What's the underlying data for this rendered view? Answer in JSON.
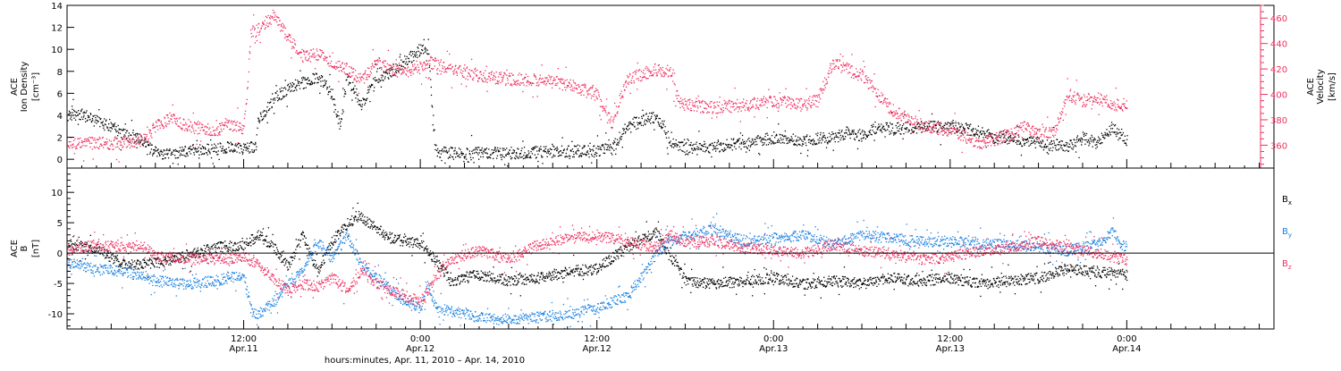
{
  "figure": {
    "xlabel": "hours:minutes, Apr. 11, 2010 – Apr. 14, 2010",
    "x_ticks": [
      {
        "time": "12:00",
        "date": "Apr.11",
        "hours": 12
      },
      {
        "time": "0:00",
        "date": "Apr.12",
        "hours": 24
      },
      {
        "time": "12:00",
        "date": "Apr.12",
        "hours": 36
      },
      {
        "time": "0:00",
        "date": "Apr.13",
        "hours": 48
      },
      {
        "time": "12:00",
        "date": "Apr.13",
        "hours": 60
      },
      {
        "time": "0:00",
        "date": "Apr.14",
        "hours": 72
      }
    ]
  },
  "chart_data": [
    {
      "type": "scatter",
      "panel": "plasma",
      "xlim": [
        0,
        82
      ],
      "x_unit": "hours since Apr.11 00:00",
      "left_axis": {
        "label_lines": [
          "ACE",
          "Ion Density",
          "[cm⁻³]"
        ],
        "ylim": [
          -0.8,
          14
        ],
        "ticks": [
          0,
          2,
          4,
          6,
          8,
          10,
          12,
          14
        ],
        "color": "#000000"
      },
      "right_axis": {
        "label_lines": [
          "ACE",
          "Velocity",
          "[km/s]"
        ],
        "ylim": [
          342,
          470
        ],
        "ticks": [
          360,
          380,
          400,
          420,
          440,
          460
        ],
        "color": "#ee3060"
      },
      "series": [
        {
          "axis": "left",
          "color": "#000000",
          "x": [
            0,
            1,
            2,
            3,
            4,
            5,
            5.5,
            6,
            7,
            8,
            9,
            10,
            11,
            12,
            12.8,
            13,
            13.5,
            14,
            15,
            16,
            17,
            18,
            18.5,
            19,
            20,
            21,
            22,
            23,
            24,
            24.5,
            25,
            26,
            28,
            30,
            32,
            34,
            36,
            37,
            37.5,
            38,
            39,
            40,
            40.5,
            41,
            42,
            44,
            46,
            48,
            50,
            52,
            53,
            54,
            55,
            56,
            58,
            60,
            61,
            62,
            63,
            64,
            66,
            68,
            69,
            70,
            71,
            72
          ],
          "y": [
            4.2,
            4.1,
            3.5,
            3.0,
            2.2,
            1.8,
            1.2,
            0.6,
            0.6,
            0.8,
            0.9,
            1.0,
            1.2,
            1.0,
            1.2,
            3.5,
            4.5,
            5.5,
            6.5,
            7.0,
            7.5,
            6.0,
            3.0,
            7.5,
            5.0,
            7.5,
            8.0,
            9.0,
            10.0,
            10.0,
            0.8,
            0.6,
            0.6,
            0.6,
            0.7,
            0.8,
            0.8,
            1.0,
            2.0,
            3.0,
            3.5,
            4.0,
            3.0,
            1.5,
            1.0,
            1.2,
            1.5,
            2.0,
            1.8,
            2.0,
            2.5,
            2.2,
            3.0,
            2.8,
            3.0,
            3.0,
            2.8,
            2.5,
            2.0,
            2.0,
            1.5,
            1.2,
            2.0,
            1.5,
            3.0,
            1.8
          ]
        },
        {
          "axis": "right",
          "color": "#ee3060",
          "x": [
            0,
            2,
            4,
            5,
            5.5,
            6,
            7,
            8,
            10,
            11,
            12,
            12.5,
            13,
            14,
            15,
            16,
            17,
            18,
            19,
            20,
            21,
            22,
            23,
            24,
            24.5,
            25,
            26,
            28,
            30,
            32,
            34,
            36,
            37,
            38,
            39,
            40,
            41,
            41.5,
            42,
            44,
            46,
            48,
            50,
            51,
            52,
            53,
            54,
            56,
            58,
            60,
            62,
            63,
            64,
            65,
            66,
            67,
            68,
            69,
            70,
            71,
            72
          ],
          "y": [
            362,
            362,
            362,
            364,
            368,
            375,
            382,
            376,
            372,
            376,
            374,
            450,
            452,
            462,
            445,
            430,
            432,
            425,
            420,
            412,
            425,
            420,
            418,
            422,
            425,
            425,
            420,
            415,
            412,
            412,
            408,
            400,
            378,
            412,
            416,
            420,
            418,
            395,
            392,
            390,
            392,
            395,
            392,
            396,
            425,
            420,
            415,
            388,
            376,
            372,
            362,
            365,
            368,
            375,
            370,
            370,
            400,
            395,
            398,
            392,
            392
          ]
        }
      ]
    },
    {
      "type": "scatter",
      "panel": "magnetic field",
      "xlim": [
        0,
        82
      ],
      "x_unit": "hours since Apr.11 00:00",
      "axis": {
        "label_lines": [
          "ACE",
          "B",
          "[nT]"
        ],
        "ylim": [
          -12.5,
          14
        ],
        "ticks": [
          -10,
          -5,
          0,
          5,
          10
        ]
      },
      "zero_line": true,
      "legend": {
        "placement": "right",
        "entries": [
          "Bx",
          "By",
          "Bz"
        ]
      },
      "series": [
        {
          "name": "Bx",
          "label_main": "B",
          "label_sub": "x",
          "color": "#000000",
          "x": [
            0,
            2,
            4,
            6,
            8,
            10,
            12,
            13,
            14,
            15,
            16,
            17,
            18,
            19,
            20,
            21,
            22,
            23,
            24,
            25,
            26,
            28,
            30,
            32,
            34,
            36,
            38,
            40,
            42,
            44,
            46,
            48,
            50,
            52,
            54,
            56,
            58,
            60,
            62,
            64,
            66,
            68,
            70,
            72
          ],
          "y": [
            1.5,
            0.8,
            -2.0,
            -1.5,
            -0.5,
            1.0,
            1.5,
            3.0,
            1.0,
            -2.0,
            3.0,
            -3.0,
            2.0,
            5.0,
            6.0,
            4.0,
            2.5,
            2.0,
            1.5,
            -1.0,
            -4.5,
            -3.5,
            -4.5,
            -4.0,
            -3.0,
            -2.5,
            1.0,
            3.5,
            -4.5,
            -5.0,
            -4.5,
            -4.0,
            -5.0,
            -4.5,
            -5.0,
            -4.0,
            -4.5,
            -4.0,
            -5.0,
            -4.5,
            -4.0,
            -2.5,
            -3.0,
            -3.5
          ]
        },
        {
          "name": "By",
          "label_main": "B",
          "label_sub": "y",
          "color": "#1a80e0",
          "x": [
            0,
            2,
            4,
            5,
            6,
            8,
            10,
            12,
            12.5,
            13,
            14,
            15,
            16,
            17,
            18,
            19,
            20,
            21,
            22,
            23,
            24,
            24.5,
            25,
            26,
            27,
            28,
            30,
            32,
            34,
            36,
            38,
            39,
            40,
            41,
            42,
            44,
            46,
            48,
            50,
            52,
            54,
            56,
            58,
            60,
            62,
            64,
            66,
            68,
            70,
            71,
            72
          ],
          "y": [
            -1.5,
            -2.5,
            -3.0,
            -3.5,
            -4.5,
            -5.0,
            -4.5,
            -3.5,
            -9.5,
            -10.0,
            -8.0,
            -5.0,
            -3.0,
            2.0,
            -1.0,
            3.0,
            -2.0,
            -4.0,
            -6.0,
            -8.0,
            -9.0,
            -5.0,
            -9.0,
            -9.5,
            -10.0,
            -10.5,
            -11.0,
            -10.5,
            -10.0,
            -9.0,
            -7.0,
            -4.0,
            0.0,
            2.0,
            3.0,
            4.0,
            2.0,
            2.5,
            3.0,
            1.5,
            3.0,
            2.5,
            2.0,
            2.0,
            1.5,
            1.5,
            1.0,
            0.5,
            1.5,
            3.5,
            0.5
          ]
        },
        {
          "name": "Bz",
          "label_main": "B",
          "label_sub": "z",
          "color": "#ee3060",
          "x": [
            0,
            2,
            4,
            5,
            6,
            8,
            10,
            12,
            13,
            14,
            15,
            16,
            17,
            18,
            19,
            20,
            21,
            22,
            23,
            24,
            25,
            26,
            28,
            30,
            32,
            34,
            36,
            38,
            40,
            41,
            42,
            44,
            46,
            48,
            50,
            52,
            54,
            56,
            58,
            60,
            62,
            64,
            66,
            68,
            70,
            72
          ],
          "y": [
            0.5,
            1.5,
            1.0,
            1.5,
            -0.5,
            -0.8,
            -1.0,
            -0.5,
            -2.0,
            -4.0,
            -6.0,
            -5.0,
            -5.5,
            -4.0,
            -6.0,
            -3.0,
            -5.0,
            -6.0,
            -7.0,
            -8.0,
            -4.0,
            -1.0,
            0.5,
            -1.0,
            1.5,
            2.5,
            3.0,
            2.0,
            1.0,
            3.0,
            2.0,
            2.0,
            1.0,
            0.5,
            0.0,
            1.5,
            0.5,
            0.0,
            -1.0,
            -0.5,
            0.5,
            1.0,
            2.0,
            1.0,
            0.0,
            -1.0
          ]
        }
      ]
    }
  ]
}
